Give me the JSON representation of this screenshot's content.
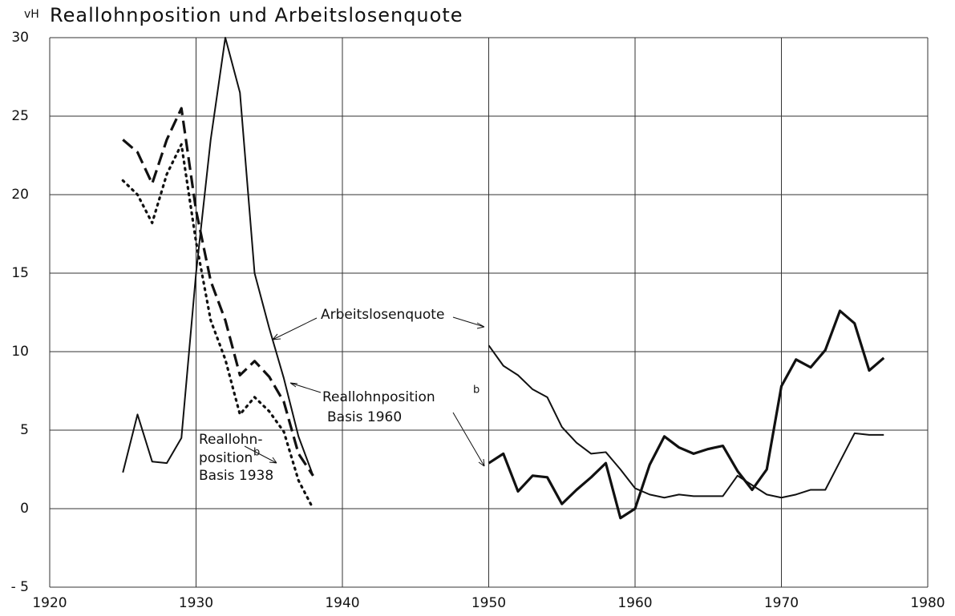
{
  "chart_data": {
    "type": "line",
    "title": "Reallohnposition und Arbeitslosenquote",
    "y_label": "vH",
    "xlim": [
      1920,
      1980
    ],
    "xticks": [
      1920,
      1930,
      1940,
      1950,
      1960,
      1970,
      1980
    ],
    "ylim": [
      -5,
      30
    ],
    "yticks": [
      {
        "value": -5,
        "label": "- 5"
      },
      0,
      5,
      10,
      15,
      20,
      25,
      30
    ],
    "grid": true,
    "series": [
      {
        "style": "thin",
        "color": "#111",
        "x": [
          1925,
          1926,
          1927,
          1928,
          1929,
          1930,
          1931,
          1932,
          1933,
          1934,
          1935,
          1936,
          1937,
          1938,
          1939,
          1950,
          1951,
          1952,
          1953,
          1954,
          1955,
          1956,
          1957,
          1958,
          1959,
          1960,
          1961,
          1962,
          1963,
          1964,
          1965,
          1966,
          1967,
          1968,
          1969,
          1970,
          1971,
          1972,
          1973,
          1974,
          1975,
          1976,
          1977
        ],
        "values": [
          2.3,
          6.0,
          3.0,
          2.9,
          4.5,
          15,
          23.5,
          30,
          26.5,
          15,
          11.5,
          8.3,
          4.6,
          2.1,
          null,
          10.4,
          9.1,
          8.5,
          7.6,
          7.1,
          5.2,
          4.2,
          3.5,
          3.6,
          2.5,
          1.3,
          0.9,
          0.7,
          0.9,
          0.8,
          0.8,
          0.8,
          2.1,
          1.5,
          0.9,
          0.7,
          0.9,
          1.2,
          1.2,
          3.0,
          4.8,
          4.7,
          4.7
        ]
      },
      {
        "style": "dashed",
        "color": "#111",
        "x": [
          1925,
          1926,
          1927,
          1928,
          1929,
          1930,
          1931,
          1932,
          1933,
          1934,
          1935,
          1936,
          1937,
          1938
        ],
        "values": [
          23.5,
          22.7,
          20.7,
          23.5,
          25.5,
          19,
          14.5,
          12,
          8.5,
          9.4,
          8.4,
          6.8,
          3.5,
          2.1
        ]
      },
      {
        "style": "thick",
        "color": "#111",
        "x": [
          1950,
          1951,
          1952,
          1953,
          1954,
          1955,
          1956,
          1957,
          1958,
          1959,
          1960,
          1961,
          1962,
          1963,
          1964,
          1965,
          1966,
          1967,
          1968,
          1969,
          1970,
          1971,
          1972,
          1973,
          1974,
          1975,
          1976,
          1977
        ],
        "values": [
          2.9,
          3.5,
          1.1,
          2.1,
          2.0,
          0.3,
          1.2,
          2.0,
          2.9,
          -0.6,
          0,
          2.8,
          4.6,
          3.9,
          3.5,
          3.8,
          4.0,
          2.4,
          1.2,
          2.5,
          7.8,
          9.5,
          9.0,
          10.1,
          12.6,
          11.8,
          8.8,
          9.6
        ]
      },
      {
        "style": "dotted",
        "color": "#111",
        "x": [
          1925,
          1926,
          1927,
          1928,
          1929,
          1930,
          1931,
          1932,
          1933,
          1934,
          1935,
          1936,
          1937,
          1938
        ],
        "values": [
          20.9,
          20.0,
          18.2,
          21.3,
          23.2,
          17,
          12,
          9.5,
          6.0,
          7.1,
          6.2,
          4.9,
          1.8,
          0
        ]
      }
    ],
    "annotations": [
      "Arbeitslosenquote",
      "Reallohnposition",
      "b",
      "Basis 1960",
      "Reallohn-",
      "position",
      "b",
      "Basis 1938"
    ]
  }
}
